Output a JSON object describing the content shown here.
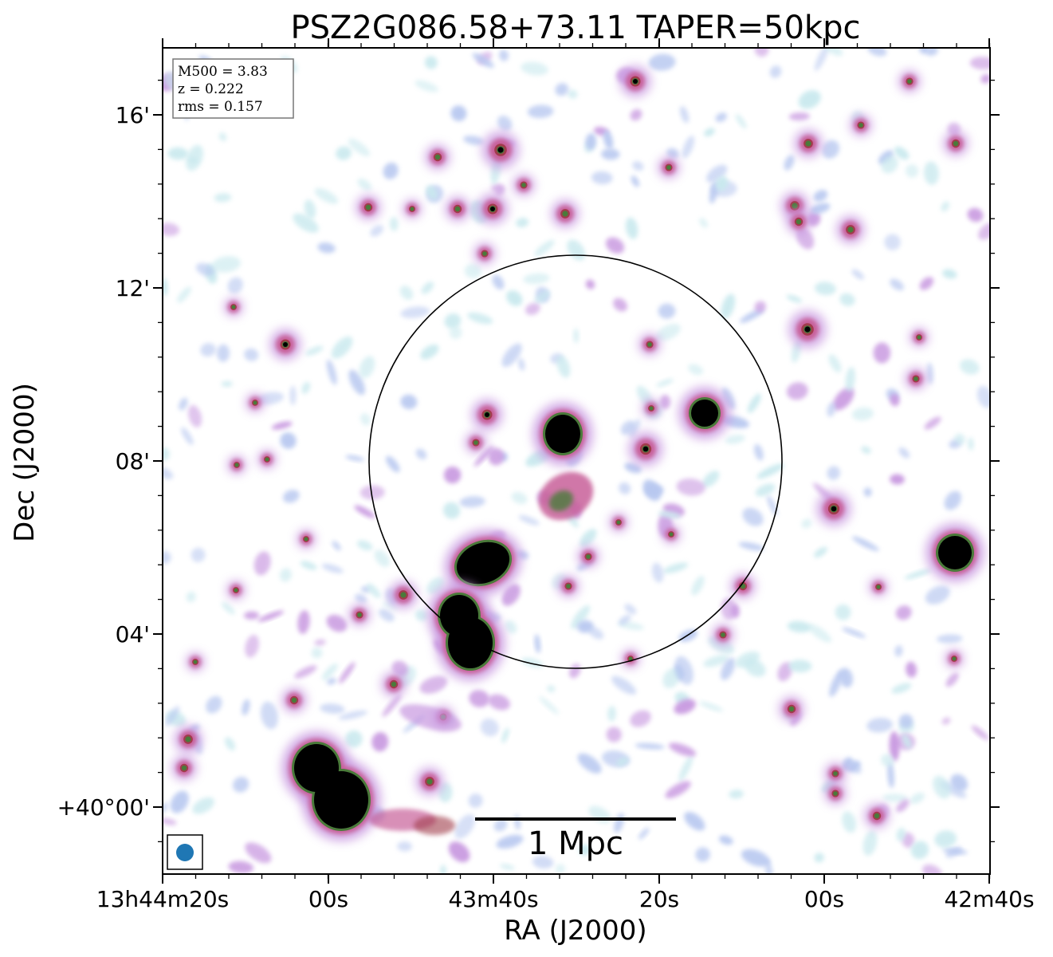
{
  "title": "PSZ2G086.58+73.11 TAPER=50kpc",
  "axes": {
    "xlabel": "RA (J2000)",
    "ylabel": "Dec (J2000)",
    "x_ticks": [
      "13h44m20s",
      "00s",
      "43m40s",
      "20s",
      "00s",
      "42m40s"
    ],
    "y_ticks": [
      "16'",
      "12'",
      "08'",
      "04'",
      "+40°00'"
    ]
  },
  "info_box": {
    "mass": "M500 = 3.83",
    "redshift": "z = 0.222",
    "rms": "rms = 0.157"
  },
  "scale_bar": {
    "label": "1 Mpc"
  },
  "colors": {
    "noise_light": "#c9e9ee",
    "noise_blue": "#b8c8f0",
    "halo_purple": "#c898e0",
    "source_pink": "#c8609a",
    "source_red": "#a03c4c",
    "core_green": "#4a7a3a",
    "saturated": "#000000",
    "beam": "#1f77b4"
  }
}
